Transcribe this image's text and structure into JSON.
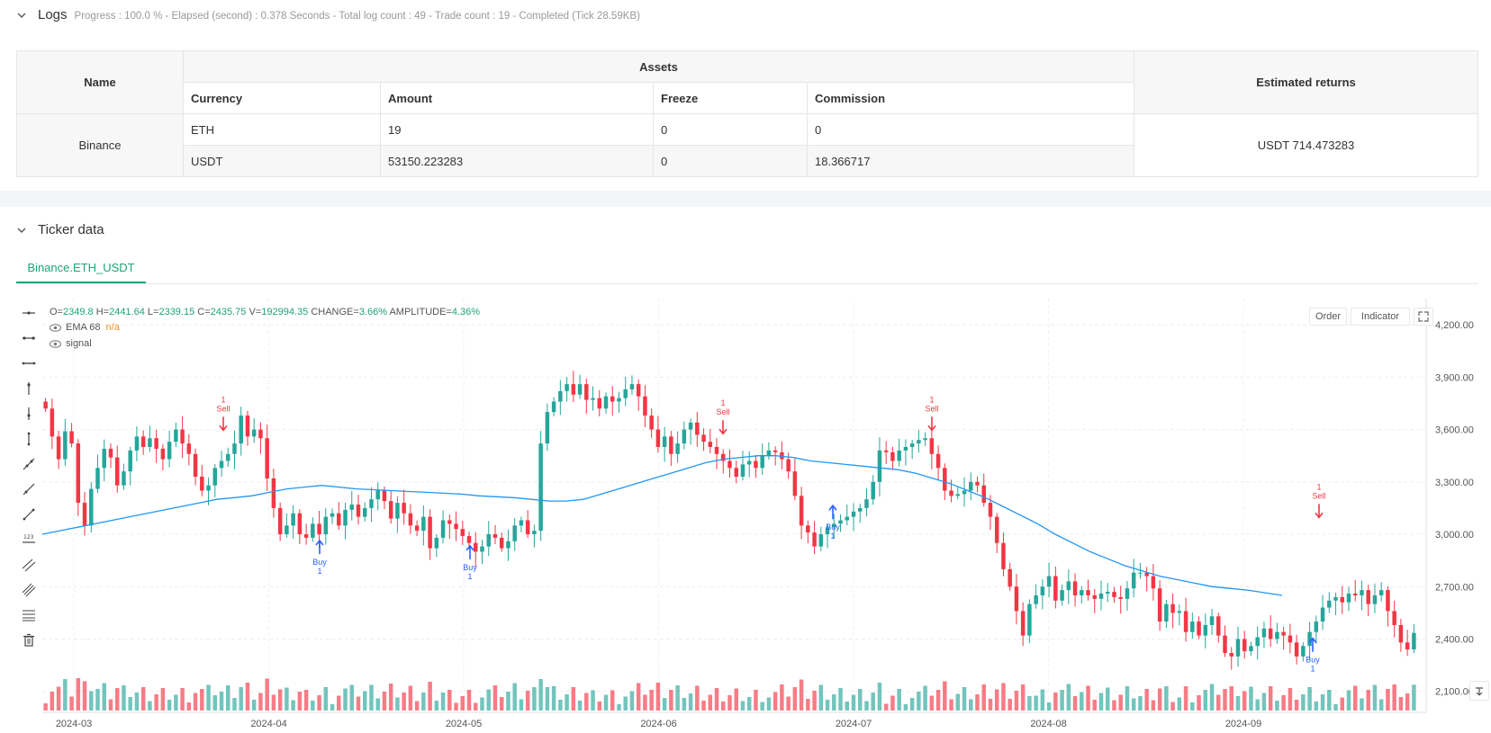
{
  "logs": {
    "title": "Logs",
    "meta": "Progress : 100.0 % - Elapsed (second) : 0.378  Seconds - Total log count : 49 - Trade count : 19 - Completed (Tick 28.59KB)"
  },
  "assets_table": {
    "name_header": "Name",
    "assets_header": "Assets",
    "returns_header": "Estimated returns",
    "columns": [
      "Currency",
      "Amount",
      "Freeze",
      "Commission"
    ],
    "exchange": "Binance",
    "rows": [
      {
        "currency": "ETH",
        "amount": "19",
        "freeze": "0",
        "commission": "0"
      },
      {
        "currency": "USDT",
        "amount": "53150.223283",
        "freeze": "0",
        "commission": "18.366717"
      }
    ],
    "estimated_returns": "USDT 714.473283"
  },
  "ticker": {
    "title": "Ticker data",
    "tab_label": "Binance.ETH_USDT"
  },
  "legend": {
    "o_label": "O=",
    "o": "2349.8",
    "h_label": "H=",
    "h": "2441.64",
    "l_label": "L=",
    "l": "2339.15",
    "c_label": "C=",
    "c": "2435.75",
    "v_label": "V=",
    "v": "192994.35",
    "change_label": "CHANGE=",
    "change": "3.66%",
    "amp_label": "AMPLITUDE=",
    "amp": "4.36%",
    "ema_label": "EMA 68",
    "ema_value": "n/a",
    "signal_label": "signal"
  },
  "buttons": {
    "order": "Order",
    "indicator": "Indicator"
  },
  "colors": {
    "up": "#26a69a",
    "down": "#f23645",
    "ema": "#2196f3",
    "buy": "#2962ff",
    "sell_arrow": "#e040fb",
    "accent": "#1fa37a"
  },
  "chart_data": {
    "type": "candlestick",
    "y_ticks": [
      "4,200.00",
      "3,900.00",
      "3,600.00",
      "3,300.00",
      "3,000.00",
      "2,700.00",
      "2,400.00",
      "2,100.00"
    ],
    "x_ticks": [
      "2024-03",
      "2024-04",
      "2024-05",
      "2024-06",
      "2024-07",
      "2024-08",
      "2024-09"
    ],
    "ylim": [
      1980,
      4350
    ],
    "close": [
      3720,
      3560,
      3430,
      3590,
      3520,
      3180,
      3050,
      3260,
      3380,
      3490,
      3440,
      3280,
      3360,
      3480,
      3560,
      3500,
      3550,
      3490,
      3430,
      3530,
      3600,
      3520,
      3460,
      3330,
      3250,
      3280,
      3380,
      3420,
      3460,
      3520,
      3680,
      3560,
      3600,
      3550,
      3320,
      3150,
      3000,
      3050,
      3120,
      3000,
      2980,
      3060,
      3000,
      3100,
      3120,
      3050,
      3140,
      3170,
      3100,
      3150,
      3200,
      3250,
      3190,
      3090,
      3180,
      3120,
      3050,
      3020,
      3100,
      2920,
      2980,
      3080,
      3060,
      3030,
      2990,
      2950,
      2900,
      2930,
      3000,
      2980,
      2920,
      2960,
      3050,
      3080,
      3000,
      3020,
      3520,
      3700,
      3760,
      3820,
      3860,
      3800,
      3860,
      3770,
      3780,
      3720,
      3790,
      3760,
      3780,
      3830,
      3860,
      3790,
      3680,
      3600,
      3500,
      3560,
      3460,
      3520,
      3600,
      3640,
      3570,
      3530,
      3500,
      3460,
      3420,
      3380,
      3330,
      3400,
      3420,
      3380,
      3450,
      3480,
      3470,
      3430,
      3360,
      3220,
      3050,
      3010,
      2930,
      3000,
      3040,
      3060,
      3080,
      3100,
      3130,
      3150,
      3200,
      3300,
      3480,
      3470,
      3420,
      3480,
      3500,
      3520,
      3540,
      3550,
      3460,
      3380,
      3250,
      3220,
      3230,
      3250,
      3300,
      3280,
      3180,
      3100,
      2950,
      2800,
      2700,
      2560,
      2420,
      2600,
      2650,
      2700,
      2760,
      2620,
      2680,
      2730,
      2650,
      2680,
      2650,
      2630,
      2660,
      2670,
      2640,
      2630,
      2690,
      2780,
      2780,
      2760,
      2690,
      2500,
      2600,
      2550,
      2560,
      2440,
      2500,
      2420,
      2480,
      2530,
      2420,
      2320,
      2300,
      2400,
      2330,
      2360,
      2410,
      2460,
      2400,
      2440,
      2420,
      2380,
      2300,
      2360,
      2440,
      2500,
      2580,
      2620,
      2640,
      2610,
      2660,
      2650,
      2680,
      2600,
      2650,
      2680,
      2560,
      2480,
      2380,
      2340,
      2435
    ],
    "ema_68": [
      3000,
      3020,
      3040,
      3060,
      3080,
      3100,
      3120,
      3140,
      3160,
      3180,
      3200,
      3210,
      3220,
      3240,
      3260,
      3270,
      3280,
      3270,
      3260,
      3255,
      3250,
      3245,
      3240,
      3235,
      3230,
      3220,
      3215,
      3210,
      3200,
      3190,
      3190,
      3200,
      3230,
      3260,
      3290,
      3320,
      3350,
      3380,
      3410,
      3430,
      3440,
      3450,
      3450,
      3440,
      3420,
      3410,
      3400,
      3390,
      3380,
      3370,
      3350,
      3320,
      3290,
      3250,
      3210,
      3160,
      3110,
      3060,
      3000,
      2950,
      2900,
      2860,
      2820,
      2790,
      2760,
      2740,
      2720,
      2700,
      2690,
      2680,
      2665,
      2650
    ],
    "volume_scale": "relative",
    "markers": [
      {
        "label": "Buy",
        "qty": "1",
        "kind": "buy"
      },
      {
        "label": "Sell",
        "qty": "1",
        "kind": "sell"
      }
    ]
  }
}
